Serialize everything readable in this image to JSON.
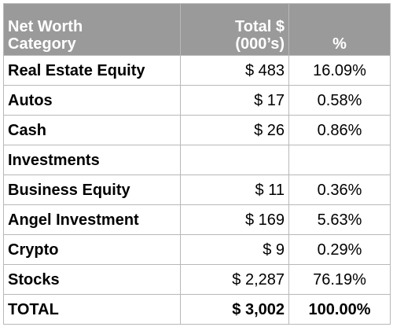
{
  "header": {
    "category_line1": "Net Worth",
    "category_line2": "Category",
    "total_line1": "Total $",
    "total_line2": "(000’s)",
    "percent": "%"
  },
  "rows": [
    {
      "category": "Real Estate Equity",
      "total": "$ 483",
      "percent": "16.09%"
    },
    {
      "category": "Autos",
      "total": "$ 17",
      "percent": "0.58%"
    },
    {
      "category": "Cash",
      "total": "$ 26",
      "percent": "0.86%"
    },
    {
      "category": "Investments",
      "total": "",
      "percent": ""
    },
    {
      "category": "Business Equity",
      "total": "$ 11",
      "percent": "0.36%"
    },
    {
      "category": "Angel Investment",
      "total": "$ 169",
      "percent": "5.63%"
    },
    {
      "category": "Crypto",
      "total": "$ 9",
      "percent": "0.29%"
    },
    {
      "category": "Stocks",
      "total": "$ 2,287",
      "percent": "76.19%"
    }
  ],
  "total_row": {
    "category": "TOTAL",
    "total": "$ 3,002",
    "percent": "100.00%"
  },
  "colors": {
    "header_bg": "#9a9a9a",
    "header_text": "#ffffff",
    "border": "#b8b8b8"
  }
}
